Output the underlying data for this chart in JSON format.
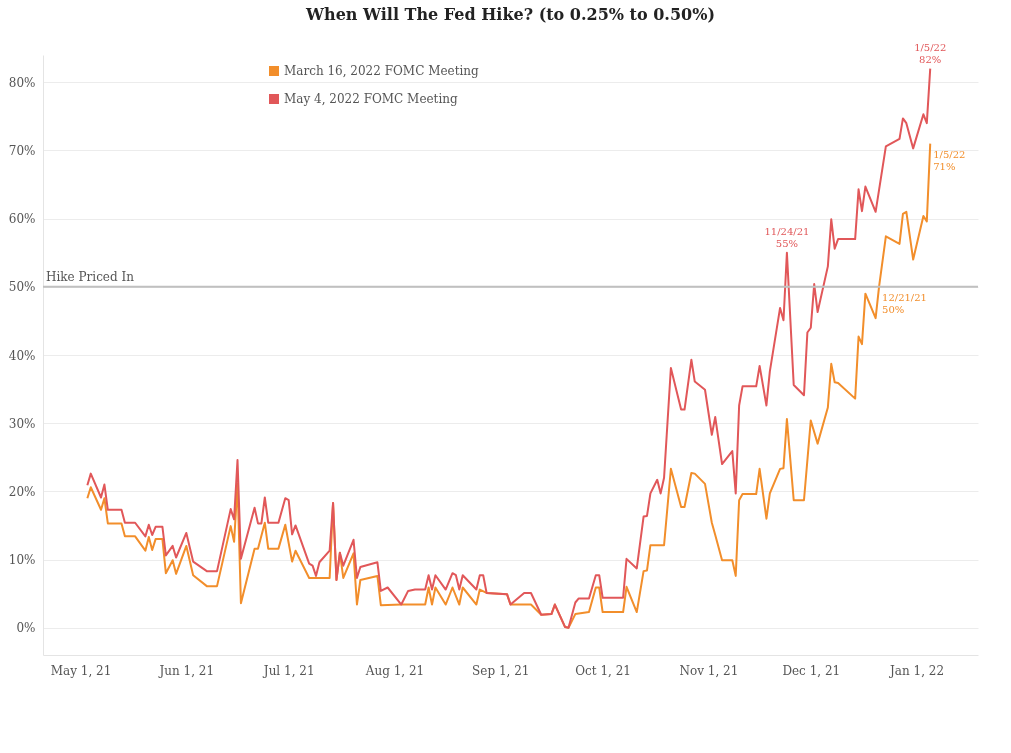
{
  "chart_data": {
    "type": "line",
    "title": "When Will The Fed Hike? (to 0.25% to 0.50%)",
    "xlim": [
      "2021-04-20",
      "2022-01-19"
    ],
    "ylim": [
      -4,
      84
    ],
    "xticks": [
      {
        "value": "2021-05-01",
        "label": "May 1, 21"
      },
      {
        "value": "2021-06-01",
        "label": "Jun 1, 21"
      },
      {
        "value": "2021-07-01",
        "label": "Jul 1, 21"
      },
      {
        "value": "2021-08-01",
        "label": "Aug 1, 21"
      },
      {
        "value": "2021-09-01",
        "label": "Sep 1, 21"
      },
      {
        "value": "2021-10-01",
        "label": "Oct 1, 21"
      },
      {
        "value": "2021-11-01",
        "label": "Nov 1, 21"
      },
      {
        "value": "2021-12-01",
        "label": "Dec 1, 21"
      },
      {
        "value": "2022-01-01",
        "label": "Jan 1, 22"
      }
    ],
    "yticks": [
      {
        "value": 0,
        "label": "0%"
      },
      {
        "value": 10,
        "label": "10%"
      },
      {
        "value": 20,
        "label": "20%"
      },
      {
        "value": 30,
        "label": "30%"
      },
      {
        "value": 40,
        "label": "40%"
      },
      {
        "value": 50,
        "label": "50%"
      },
      {
        "value": 60,
        "label": "60%"
      },
      {
        "value": 70,
        "label": "70%"
      },
      {
        "value": 80,
        "label": "80%"
      }
    ],
    "grid": "y",
    "legend": "top left",
    "ref_lines": [
      {
        "axis": "y",
        "value": 50,
        "label": "Hike Priced In",
        "color": "#c0c0c0"
      }
    ],
    "annotations": [
      {
        "text": "11/24/21\n55%",
        "x": "2021-11-24",
        "y": 55
      },
      {
        "text": "1/5/22\n82%",
        "x": "2022-01-05",
        "y": 82
      },
      {
        "text": "1/5/22\n71%",
        "x": "2022-01-05",
        "y": 71
      },
      {
        "text": "12/21/21\n50%",
        "x": "2021-12-21",
        "y": 50
      }
    ],
    "series": [
      {
        "name": "March 16, 2022 FOMC Meeting",
        "color": "#f28e2b",
        "x": [
          "2021-05-03",
          "2021-05-04",
          "2021-05-07",
          "2021-05-08",
          "2021-05-09",
          "2021-05-13",
          "2021-05-14",
          "2021-05-17",
          "2021-05-20",
          "2021-05-21",
          "2021-05-22",
          "2021-05-23",
          "2021-05-25",
          "2021-05-26",
          "2021-05-28",
          "2021-05-29",
          "2021-06-01",
          "2021-06-03",
          "2021-06-07",
          "2021-06-10",
          "2021-06-14",
          "2021-06-15",
          "2021-06-16",
          "2021-06-17",
          "2021-06-21",
          "2021-06-22",
          "2021-06-24",
          "2021-06-25",
          "2021-06-28",
          "2021-06-30",
          "2021-07-02",
          "2021-07-03",
          "2021-07-07",
          "2021-07-13",
          "2021-07-14",
          "2021-07-15",
          "2021-07-16",
          "2021-07-17",
          "2021-07-20",
          "2021-07-21",
          "2021-07-22",
          "2021-07-27",
          "2021-07-28",
          "2021-08-03",
          "2021-08-10",
          "2021-08-11",
          "2021-08-12",
          "2021-08-13",
          "2021-08-16",
          "2021-08-18",
          "2021-08-20",
          "2021-08-21",
          "2021-08-25",
          "2021-08-26",
          "2021-08-28",
          "2021-09-03",
          "2021-09-04",
          "2021-09-10",
          "2021-09-13",
          "2021-09-16",
          "2021-09-17",
          "2021-09-20",
          "2021-09-21",
          "2021-09-23",
          "2021-09-27",
          "2021-09-29",
          "2021-09-30",
          "2021-10-01",
          "2021-10-07",
          "2021-10-08",
          "2021-10-11",
          "2021-10-13",
          "2021-10-14",
          "2021-10-15",
          "2021-10-19",
          "2021-10-21",
          "2021-10-24",
          "2021-10-25",
          "2021-10-27",
          "2021-10-28",
          "2021-10-31",
          "2021-11-02",
          "2021-11-03",
          "2021-11-05",
          "2021-11-08",
          "2021-11-09",
          "2021-11-10",
          "2021-11-11",
          "2021-11-15",
          "2021-11-16",
          "2021-11-18",
          "2021-11-19",
          "2021-11-22",
          "2021-11-23",
          "2021-11-24",
          "2021-11-26",
          "2021-11-29",
          "2021-12-01",
          "2021-12-03",
          "2021-12-06",
          "2021-12-07",
          "2021-12-08",
          "2021-12-09",
          "2021-12-14",
          "2021-12-15",
          "2021-12-16",
          "2021-12-17",
          "2021-12-20",
          "2021-12-21",
          "2021-12-23",
          "2021-12-27",
          "2021-12-28",
          "2021-12-29",
          "2021-12-31",
          "2022-01-03",
          "2022-01-04",
          "2022-01-05"
        ],
        "values": [
          19.0,
          20.6,
          17.3,
          19.0,
          15.3,
          15.3,
          13.4,
          13.4,
          11.3,
          13.3,
          11.4,
          13.0,
          13.0,
          8.0,
          9.9,
          7.9,
          12.0,
          7.7,
          6.1,
          6.1,
          14.9,
          12.6,
          21.1,
          3.6,
          11.6,
          11.6,
          15.4,
          11.6,
          11.6,
          15.1,
          9.7,
          11.3,
          7.3,
          7.3,
          18.3,
          7.0,
          11.0,
          7.3,
          10.9,
          3.4,
          7.0,
          7.6,
          3.3,
          3.4,
          3.4,
          5.9,
          3.4,
          5.9,
          3.4,
          5.9,
          3.4,
          5.9,
          3.4,
          5.6,
          5.1,
          4.9,
          3.4,
          3.4,
          1.9,
          2.0,
          3.4,
          0.1,
          0.0,
          2.0,
          2.3,
          5.9,
          5.9,
          2.3,
          2.3,
          6.0,
          2.3,
          8.3,
          8.4,
          12.1,
          12.1,
          23.3,
          17.7,
          17.7,
          22.7,
          22.6,
          21.1,
          15.4,
          13.6,
          9.9,
          9.9,
          7.6,
          18.7,
          19.6,
          19.6,
          23.3,
          16.0,
          19.7,
          23.3,
          23.4,
          30.6,
          18.7,
          18.7,
          30.4,
          27.0,
          32.3,
          38.7,
          36.0,
          35.9,
          33.6,
          42.7,
          41.6,
          49.0,
          45.4,
          50,
          57.4,
          56.3,
          60.7,
          61.0,
          54.0,
          60.4,
          59.6,
          71
        ]
      },
      {
        "name": "May 4, 2022 FOMC Meeting",
        "color": "#e15759",
        "x": [
          "2021-05-03",
          "2021-05-04",
          "2021-05-07",
          "2021-05-08",
          "2021-05-09",
          "2021-05-13",
          "2021-05-14",
          "2021-05-17",
          "2021-05-20",
          "2021-05-21",
          "2021-05-22",
          "2021-05-23",
          "2021-05-25",
          "2021-05-26",
          "2021-05-28",
          "2021-05-29",
          "2021-06-01",
          "2021-06-03",
          "2021-06-07",
          "2021-06-10",
          "2021-06-14",
          "2021-06-15",
          "2021-06-16",
          "2021-06-17",
          "2021-06-21",
          "2021-06-22",
          "2021-06-23",
          "2021-06-24",
          "2021-06-25",
          "2021-06-28",
          "2021-06-30",
          "2021-07-01",
          "2021-07-02",
          "2021-07-03",
          "2021-07-07",
          "2021-07-08",
          "2021-07-09",
          "2021-07-10",
          "2021-07-13",
          "2021-07-14",
          "2021-07-15",
          "2021-07-16",
          "2021-07-17",
          "2021-07-20",
          "2021-07-21",
          "2021-07-22",
          "2021-07-27",
          "2021-07-28",
          "2021-07-30",
          "2021-08-03",
          "2021-08-05",
          "2021-08-07",
          "2021-08-10",
          "2021-08-11",
          "2021-08-12",
          "2021-08-13",
          "2021-08-16",
          "2021-08-18",
          "2021-08-19",
          "2021-08-20",
          "2021-08-21",
          "2021-08-25",
          "2021-08-26",
          "2021-08-27",
          "2021-08-28",
          "2021-09-03",
          "2021-09-04",
          "2021-09-08",
          "2021-09-10",
          "2021-09-13",
          "2021-09-16",
          "2021-09-17",
          "2021-09-20",
          "2021-09-21",
          "2021-09-23",
          "2021-09-24",
          "2021-09-27",
          "2021-09-29",
          "2021-09-30",
          "2021-10-01",
          "2021-10-07",
          "2021-10-08",
          "2021-10-11",
          "2021-10-13",
          "2021-10-14",
          "2021-10-15",
          "2021-10-17",
          "2021-10-18",
          "2021-10-19",
          "2021-10-21",
          "2021-10-24",
          "2021-10-25",
          "2021-10-27",
          "2021-10-28",
          "2021-10-31",
          "2021-11-02",
          "2021-11-03",
          "2021-11-05",
          "2021-11-08",
          "2021-11-09",
          "2021-11-10",
          "2021-11-11",
          "2021-11-15",
          "2021-11-16",
          "2021-11-18",
          "2021-11-19",
          "2021-11-22",
          "2021-11-23",
          "2021-11-24",
          "2021-11-26",
          "2021-11-29",
          "2021-11-30",
          "2021-12-01",
          "2021-12-02",
          "2021-12-03",
          "2021-12-06",
          "2021-12-07",
          "2021-12-08",
          "2021-12-09",
          "2021-12-14",
          "2021-12-15",
          "2021-12-16",
          "2021-12-17",
          "2021-12-20",
          "2021-12-23",
          "2021-12-27",
          "2021-12-28",
          "2021-12-29",
          "2021-12-31",
          "2022-01-03",
          "2022-01-04",
          "2022-01-05"
        ],
        "values": [
          20.9,
          22.6,
          19.1,
          21.0,
          17.3,
          17.3,
          15.4,
          15.4,
          13.4,
          15.1,
          13.6,
          14.8,
          14.8,
          10.6,
          12.0,
          10.3,
          13.9,
          9.7,
          8.3,
          8.3,
          17.4,
          15.9,
          24.6,
          10.1,
          17.6,
          15.3,
          15.3,
          19.1,
          15.4,
          15.4,
          19.0,
          18.7,
          13.7,
          15.0,
          9.4,
          9.1,
          7.6,
          9.6,
          11.3,
          18.3,
          7.0,
          11.0,
          9.1,
          12.9,
          7.3,
          8.9,
          9.6,
          5.4,
          5.9,
          3.4,
          5.4,
          5.6,
          5.6,
          7.7,
          5.6,
          7.7,
          5.6,
          8.0,
          7.7,
          5.6,
          7.7,
          5.6,
          7.7,
          7.7,
          5.1,
          4.9,
          3.4,
          5.1,
          5.1,
          1.9,
          2.0,
          3.4,
          0.1,
          0.0,
          3.7,
          4.3,
          4.3,
          7.7,
          7.7,
          4.4,
          4.4,
          10.1,
          8.7,
          16.3,
          16.4,
          19.7,
          21.7,
          19.7,
          22.0,
          38.1,
          32.0,
          32.0,
          39.3,
          36.1,
          34.9,
          28.3,
          30.9,
          24.0,
          25.9,
          19.7,
          32.6,
          35.4,
          35.4,
          38.4,
          32.6,
          37.6,
          46.9,
          45.1,
          55,
          35.6,
          34.1,
          43.3,
          44.0,
          50.4,
          46.3,
          53.0,
          59.9,
          55.6,
          57.0,
          57.0,
          64.3,
          61.1,
          64.7,
          61.0,
          70.6,
          71.7,
          74.7,
          74.0,
          70.3,
          75.3,
          74.0,
          82
        ]
      }
    ]
  }
}
